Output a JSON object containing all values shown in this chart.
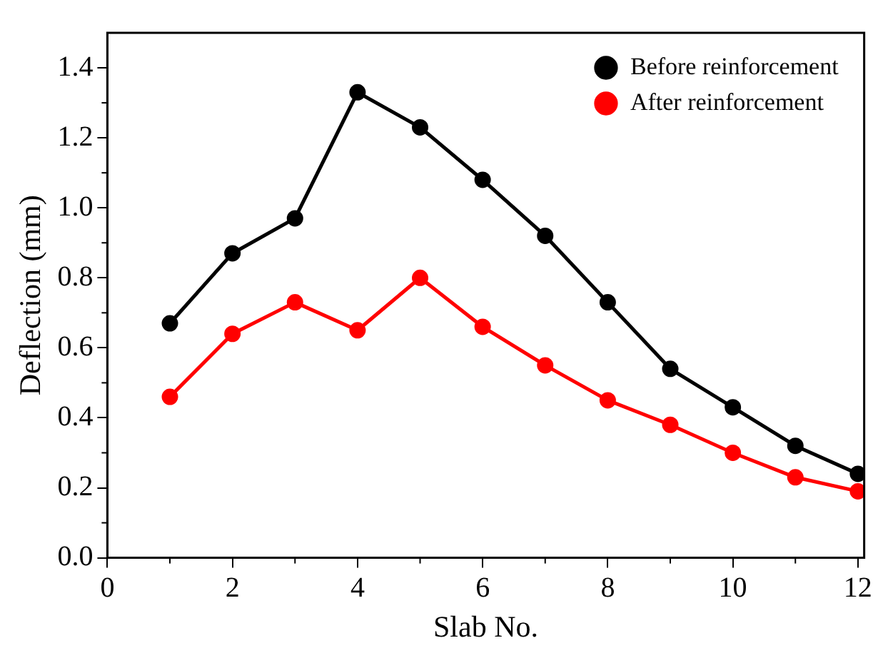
{
  "chart_data": {
    "type": "line",
    "xlabel": "Slab No.",
    "ylabel": "Deflection (mm)",
    "x": [
      1,
      2,
      3,
      4,
      5,
      6,
      7,
      8,
      9,
      10,
      11,
      12
    ],
    "series": [
      {
        "name": "Before reinforcement",
        "color": "#000000",
        "values": [
          0.67,
          0.87,
          0.97,
          1.33,
          1.23,
          1.08,
          0.92,
          0.73,
          0.54,
          0.43,
          0.32,
          0.24
        ]
      },
      {
        "name": "After reinforcement",
        "color": "#ff0000",
        "values": [
          0.46,
          0.64,
          0.73,
          0.65,
          0.8,
          0.66,
          0.55,
          0.45,
          0.38,
          0.3,
          0.23,
          0.19
        ]
      }
    ],
    "xlim": [
      0,
      12.1
    ],
    "xticks": [
      0,
      2,
      4,
      6,
      8,
      10,
      12
    ],
    "ylim": [
      0,
      1.5
    ],
    "yticks": [
      {
        "value": 0,
        "label": "0.0"
      },
      {
        "value": 0.2,
        "label": "0.2"
      },
      {
        "value": 0.4,
        "label": "0.4"
      },
      {
        "value": 0.6,
        "label": "0.6"
      },
      {
        "value": 0.8,
        "label": "0.8"
      },
      {
        "value": 1.0,
        "label": "1.0"
      },
      {
        "value": 1.2,
        "label": "1.2"
      },
      {
        "value": 1.4,
        "label": "1.4"
      }
    ],
    "legend": "top right",
    "marker": "circle",
    "line_style": "solid",
    "grid": false
  }
}
